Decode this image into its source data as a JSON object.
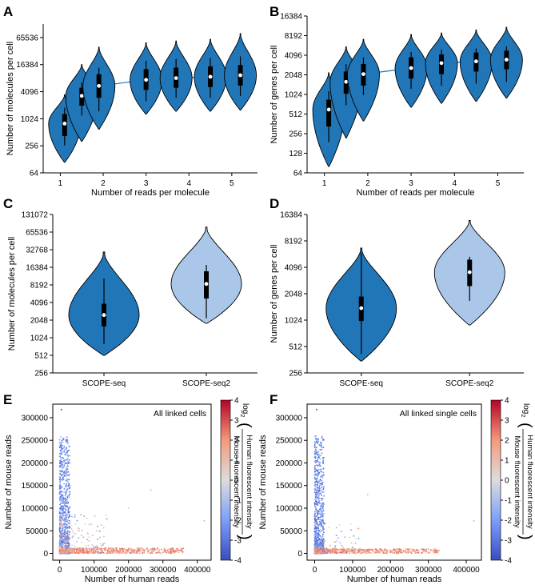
{
  "colors": {
    "seq1": "#2176b8",
    "seq2": "#aac6e8",
    "axis": "#000000",
    "box": "#000000",
    "median": "#ffffff",
    "line": "#2176b8",
    "cmap_low": "#3b4cc0",
    "cmap_mid": "#dddddd",
    "cmap_high": "#b40426"
  },
  "panels": {
    "A": "A",
    "B": "B",
    "C": "C",
    "D": "D",
    "E": "E",
    "F": "F"
  },
  "colorbar": {
    "ticks": [
      "4",
      "3",
      "2",
      "1",
      "0",
      "-1",
      "-2",
      "-3",
      "-4"
    ],
    "log_label": "log",
    "log_sub": "2",
    "numerator": "Human fluorescent intensity",
    "denominator": "Mouse fluorescent intensity"
  },
  "chart_data": [
    {
      "id": "A",
      "type": "violin",
      "xlabel": "Number of reads per molecule",
      "ylabel": "Number of molecules per cell",
      "yscale": "log2",
      "ylim": [
        64,
        131072
      ],
      "yticks": [
        64,
        256,
        1024,
        4096,
        16384,
        65536
      ],
      "ytick_labels": [
        "64",
        "256",
        "1024",
        "4096",
        "16384",
        "65536"
      ],
      "xlim": [
        0.6,
        5.6
      ],
      "xticks": [
        1,
        2,
        3,
        4,
        5
      ],
      "xtick_labels": [
        "1",
        "2",
        "3",
        "4",
        "5"
      ],
      "trend_line": true,
      "violins": [
        {
          "x": 1.1,
          "lo": 110,
          "hi": 3500,
          "median": 800,
          "q1": 420,
          "q3": 1300,
          "wlo": 260,
          "whi": 1800
        },
        {
          "x": 1.5,
          "lo": 320,
          "hi": 16384,
          "median": 3300,
          "q1": 2000,
          "q3": 5000,
          "wlo": 1200,
          "whi": 6500
        },
        {
          "x": 1.9,
          "lo": 600,
          "hi": 40000,
          "median": 5500,
          "q1": 3000,
          "q3": 10000,
          "wlo": 1500,
          "whi": 14000
        },
        {
          "x": 3.0,
          "lo": 1300,
          "hi": 50000,
          "median": 7500,
          "q1": 4500,
          "q3": 13000,
          "wlo": 2500,
          "whi": 20000
        },
        {
          "x": 3.7,
          "lo": 1500,
          "hi": 55000,
          "median": 8200,
          "q1": 5000,
          "q3": 14000,
          "wlo": 3000,
          "whi": 22000
        },
        {
          "x": 4.5,
          "lo": 1500,
          "hi": 60000,
          "median": 8800,
          "q1": 5200,
          "q3": 15000,
          "wlo": 3000,
          "whi": 23000
        },
        {
          "x": 5.2,
          "lo": 1600,
          "hi": 80000,
          "median": 9500,
          "q1": 5600,
          "q3": 16000,
          "wlo": 3300,
          "whi": 25000
        }
      ]
    },
    {
      "id": "B",
      "type": "violin",
      "xlabel": "Number of reads per molecule",
      "ylabel": "Number of genes per cell",
      "yscale": "log2",
      "ylim": [
        64,
        16384
      ],
      "yticks": [
        64,
        128,
        256,
        512,
        1024,
        2048,
        4096,
        8192,
        16384
      ],
      "ytick_labels": [
        "64",
        "128",
        "256",
        "512",
        "1024",
        "2048",
        "4096",
        "8192",
        "16384"
      ],
      "xlim": [
        0.6,
        5.6
      ],
      "xticks": [
        1,
        2,
        3,
        4,
        5
      ],
      "xtick_labels": [
        "1",
        "2",
        "3",
        "4",
        "5"
      ],
      "trend_line": true,
      "violins": [
        {
          "x": 1.1,
          "lo": 80,
          "hi": 2200,
          "median": 600,
          "q1": 330,
          "q3": 850,
          "wlo": 190,
          "whi": 1150
        },
        {
          "x": 1.5,
          "lo": 220,
          "hi": 5500,
          "median": 1600,
          "q1": 1050,
          "q3": 2300,
          "wlo": 700,
          "whi": 3000
        },
        {
          "x": 1.9,
          "lo": 400,
          "hi": 7200,
          "median": 2100,
          "q1": 1400,
          "q3": 3000,
          "wlo": 1000,
          "whi": 3800
        },
        {
          "x": 3.0,
          "lo": 650,
          "hi": 8500,
          "median": 2600,
          "q1": 1800,
          "q3": 3800,
          "wlo": 1250,
          "whi": 4600
        },
        {
          "x": 3.7,
          "lo": 750,
          "hi": 9000,
          "median": 3100,
          "q1": 2100,
          "q3": 4200,
          "wlo": 1400,
          "whi": 5000
        },
        {
          "x": 4.5,
          "lo": 800,
          "hi": 10000,
          "median": 3300,
          "q1": 2300,
          "q3": 4500,
          "wlo": 1500,
          "whi": 5200
        },
        {
          "x": 5.2,
          "lo": 900,
          "hi": 11000,
          "median": 3500,
          "q1": 2500,
          "q3": 4800,
          "wlo": 1600,
          "whi": 5600
        }
      ]
    },
    {
      "id": "C",
      "type": "violin",
      "xlabel": "",
      "ylabel": "Number of molecules per cell",
      "yscale": "log2",
      "ylim": [
        256,
        131072
      ],
      "yticks": [
        256,
        512,
        1024,
        2048,
        4096,
        8192,
        16384,
        32768,
        65536,
        131072
      ],
      "ytick_labels": [
        "256",
        "512",
        "1024",
        "2048",
        "4096",
        "8192",
        "16384",
        "32768",
        "65536",
        "131072"
      ],
      "xlim": [
        0.5,
        2.5
      ],
      "xticks": [
        1,
        2
      ],
      "xtick_labels": [
        "SCOPE-seq",
        "SCOPE-seq2"
      ],
      "trend_line": false,
      "violins": [
        {
          "x": 1,
          "lo": 512,
          "hi": 30000,
          "median": 2500,
          "q1": 1600,
          "q3": 3900,
          "wlo": 800,
          "whi": 10500,
          "color": "seq1",
          "width": 88
        },
        {
          "x": 2,
          "lo": 1800,
          "hi": 80000,
          "median": 8500,
          "q1": 4800,
          "q3": 14000,
          "wlo": 2200,
          "whi": 18000,
          "color": "seq2",
          "width": 88
        }
      ]
    },
    {
      "id": "D",
      "type": "violin",
      "xlabel": "",
      "ylabel": "Number of genes per cell",
      "yscale": "log2",
      "ylim": [
        256,
        16384
      ],
      "yticks": [
        256,
        512,
        1024,
        2048,
        4096,
        8192,
        16384
      ],
      "ytick_labels": [
        "256",
        "512",
        "1024",
        "2048",
        "4096",
        "8192",
        "16384"
      ],
      "xlim": [
        0.5,
        2.5
      ],
      "xticks": [
        1,
        2
      ],
      "xtick_labels": [
        "SCOPE-seq",
        "SCOPE-seq2"
      ],
      "trend_line": false,
      "violins": [
        {
          "x": 1,
          "lo": 350,
          "hi": 6800,
          "median": 1400,
          "q1": 1000,
          "q3": 1900,
          "wlo": 420,
          "whi": 6000,
          "color": "seq1",
          "width": 88
        },
        {
          "x": 2,
          "lo": 900,
          "hi": 14000,
          "median": 3600,
          "q1": 2500,
          "q3": 5000,
          "wlo": 1700,
          "whi": 5400,
          "color": "seq2",
          "width": 88
        }
      ]
    },
    {
      "id": "E",
      "type": "scatter",
      "title": "All linked cells",
      "xlabel": "Number of human reads",
      "ylabel": "Number of mouse reads",
      "xlim": [
        -20000,
        440000
      ],
      "ylim": [
        -15000,
        330000
      ],
      "xticks": [
        0,
        100000,
        200000,
        300000,
        400000
      ],
      "xtick_labels": [
        "0",
        "100000",
        "200000",
        "300000",
        "400000"
      ],
      "yticks": [
        0,
        50000,
        100000,
        150000,
        200000,
        250000,
        300000
      ],
      "ytick_labels": [
        "0",
        "50000",
        "100000",
        "150000",
        "200000",
        "250000",
        "300000"
      ],
      "color_range": [
        -4,
        4
      ],
      "clusters": {
        "mouse": {
          "n": 900,
          "x_max": 30000,
          "y_max": 260000,
          "c_mean": -2.4
        },
        "human": {
          "n": 650,
          "x_max": 360000,
          "y_max": 12000,
          "c_mean": 2.0
        },
        "mixed": {
          "n": 140,
          "x_max": 140000,
          "y_max": 90000,
          "c_mean": 0.0
        },
        "outliers": [
          {
            "x": 5000,
            "y": 318000,
            "c": -3.5
          },
          {
            "x": 420000,
            "y": 72000,
            "c": 1.5
          },
          {
            "x": 265000,
            "y": 140000,
            "c": 1.2
          },
          {
            "x": 200000,
            "y": 100000,
            "c": 0.5
          }
        ]
      }
    },
    {
      "id": "F",
      "type": "scatter",
      "title": "All linked single cells",
      "xlabel": "Number of human reads",
      "ylabel": "Number of mouse reads",
      "xlim": [
        -20000,
        440000
      ],
      "ylim": [
        -15000,
        330000
      ],
      "xticks": [
        0,
        100000,
        200000,
        300000,
        400000
      ],
      "xtick_labels": [
        "0",
        "100000",
        "200000",
        "300000",
        "400000"
      ],
      "yticks": [
        0,
        50000,
        100000,
        150000,
        200000,
        250000,
        300000
      ],
      "ytick_labels": [
        "0",
        "50000",
        "100000",
        "150000",
        "200000",
        "250000",
        "300000"
      ],
      "color_range": [
        -4,
        4
      ],
      "clusters": {
        "mouse": {
          "n": 850,
          "x_max": 25000,
          "y_max": 260000,
          "c_mean": -2.5
        },
        "human": {
          "n": 620,
          "x_max": 330000,
          "y_max": 10000,
          "c_mean": 2.0
        },
        "mixed": {
          "n": 60,
          "x_max": 120000,
          "y_max": 70000,
          "c_mean": 0.0
        },
        "outliers": [
          {
            "x": 5000,
            "y": 318000,
            "c": -3.5
          },
          {
            "x": 420000,
            "y": 72000,
            "c": 1.5
          },
          {
            "x": 140000,
            "y": 130000,
            "c": 1.0
          }
        ]
      }
    }
  ]
}
